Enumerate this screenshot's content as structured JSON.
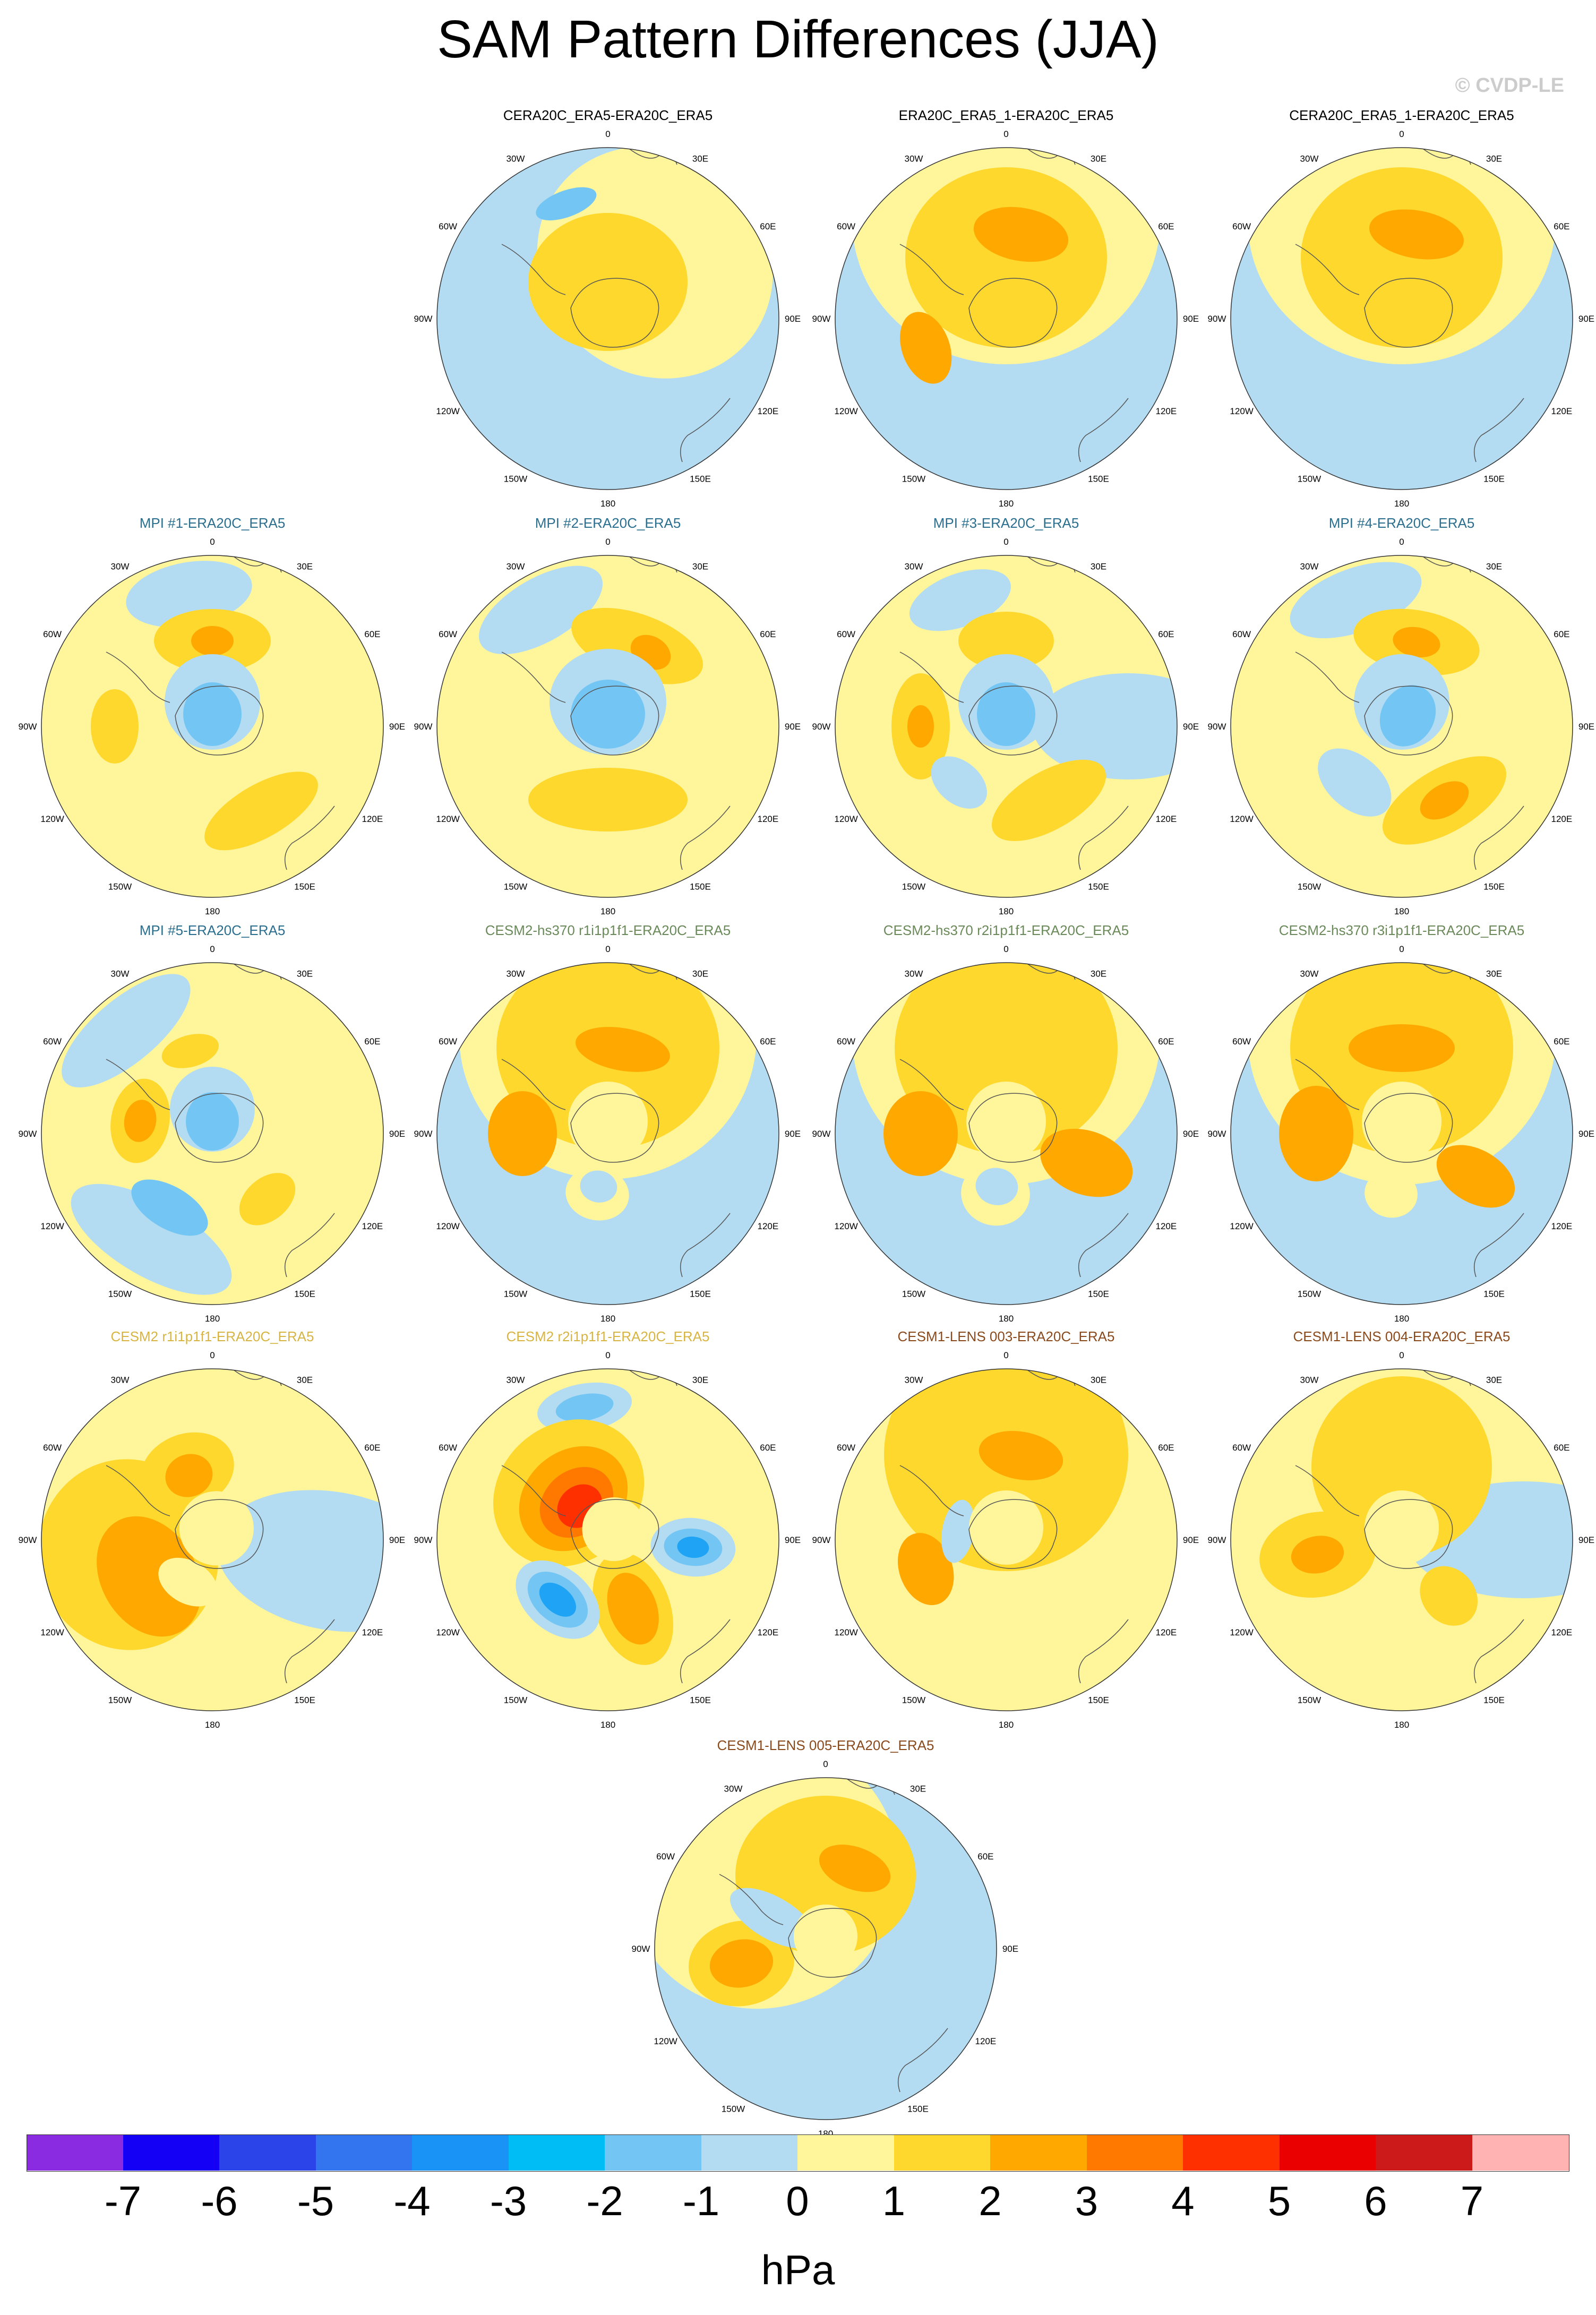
{
  "title": "SAM Pattern Differences (JJA)",
  "copyright": "© CVDP-LE",
  "units": "hPa",
  "colors": {
    "ocean_neg": "#b3dcf2",
    "pos_weak": "#fff59b",
    "pos_mid": "#ffd82e",
    "pos_strong": "#ffa800",
    "pos_stronger": "#ff7800",
    "pos_red": "#ff3000",
    "neg_mid": "#73c6f4",
    "neg_strong": "#1ea3f5",
    "title_blue": "#2a6f8f",
    "title_green": "#6b8a5a",
    "title_gold": "#d8b443",
    "title_brown": "#8a4a1c"
  },
  "colorbar": {
    "colors": [
      "#8a2be2",
      "#1400f5",
      "#2a44ea",
      "#3375ef",
      "#1a93f7",
      "#00bdf5",
      "#73c6f4",
      "#b3dcf2",
      "#fff59b",
      "#ffd82e",
      "#ffa800",
      "#ff7800",
      "#ff3000",
      "#ea0000",
      "#cc1a1a",
      "#ffb3b3"
    ],
    "labels": [
      "-7",
      "-6",
      "-5",
      "-4",
      "-3",
      "-2",
      "-1",
      "0",
      "1",
      "2",
      "3",
      "4",
      "5",
      "6",
      "7"
    ]
  },
  "lon_labels": [
    "0",
    "30E",
    "60E",
    "90E",
    "120E",
    "150E",
    "180",
    "150W",
    "120W",
    "90W",
    "60W",
    "30W"
  ],
  "panels": [
    {
      "title": "CERA20C_ERA5-ERA20C_ERA5",
      "title_color": "#000000",
      "bg": "#b3dcf2",
      "blobs": [
        {
          "lat": -60,
          "lon": 40,
          "rx": 230,
          "ry": 210,
          "color": "#fff59b"
        },
        {
          "lat": -75,
          "lon": 0,
          "rx": 150,
          "ry": 130,
          "color": "#ffd82e"
        },
        {
          "lat": -40,
          "lon": -20,
          "rx": 60,
          "ry": 25,
          "color": "#73c6f4"
        }
      ]
    },
    {
      "title": "ERA20C_ERA5_1-ERA20C_ERA5",
      "title_color": "#000000",
      "bg": "#b3dcf2",
      "blobs": [
        {
          "lat": -50,
          "lon": 0,
          "rx": 290,
          "ry": 270,
          "color": "#fff59b"
        },
        {
          "lat": -65,
          "lon": 0,
          "rx": 190,
          "ry": 170,
          "color": "#ffd82e"
        },
        {
          "lat": -55,
          "lon": 10,
          "rx": 90,
          "ry": 50,
          "color": "#ffa800"
        },
        {
          "lat": -55,
          "lon": -110,
          "rx": 70,
          "ry": 45,
          "color": "#ffa800"
        }
      ]
    },
    {
      "title": "CERA20C_ERA5_1-ERA20C_ERA5",
      "title_color": "#000000",
      "bg": "#b3dcf2",
      "blobs": [
        {
          "lat": -50,
          "lon": 0,
          "rx": 290,
          "ry": 270,
          "color": "#fff59b"
        },
        {
          "lat": -65,
          "lon": 0,
          "rx": 190,
          "ry": 170,
          "color": "#ffd82e"
        },
        {
          "lat": -55,
          "lon": 10,
          "rx": 90,
          "ry": 45,
          "color": "#ffa800"
        }
      ]
    },
    {
      "title": "MPI #1-ERA20C_ERA5",
      "title_color": "#2a6f8f",
      "bg": "#fff59b",
      "blobs": [
        {
          "lat": -35,
          "lon": -10,
          "rx": 120,
          "ry": 60,
          "color": "#b3dcf2"
        },
        {
          "lat": -55,
          "lon": 0,
          "rx": 110,
          "ry": 60,
          "color": "#ffd82e"
        },
        {
          "lat": -55,
          "lon": 0,
          "rx": 40,
          "ry": 28,
          "color": "#ffa800"
        },
        {
          "lat": -50,
          "lon": -90,
          "rx": 70,
          "ry": 45,
          "color": "#ffd82e"
        },
        {
          "lat": -50,
          "lon": 150,
          "rx": 120,
          "ry": 50,
          "color": "#ffd82e"
        },
        {
          "lat": -80,
          "lon": 0,
          "rx": 90,
          "ry": 90,
          "color": "#b3dcf2"
        },
        {
          "lat": -85,
          "lon": 0,
          "rx": 55,
          "ry": 60,
          "color": "#73c6f4"
        }
      ]
    },
    {
      "title": "MPI #2-ERA20C_ERA5",
      "title_color": "#2a6f8f",
      "bg": "#fff59b",
      "blobs": [
        {
          "lat": -35,
          "lon": -30,
          "rx": 130,
          "ry": 60,
          "color": "#b3dcf2"
        },
        {
          "lat": -55,
          "lon": 20,
          "rx": 130,
          "ry": 60,
          "color": "#ffd82e"
        },
        {
          "lat": -55,
          "lon": 30,
          "rx": 40,
          "ry": 30,
          "color": "#ffa800"
        },
        {
          "lat": -60,
          "lon": 180,
          "rx": 150,
          "ry": 60,
          "color": "#ffd82e"
        },
        {
          "lat": -80,
          "lon": 0,
          "rx": 110,
          "ry": 100,
          "color": "#b3dcf2"
        },
        {
          "lat": -85,
          "lon": 0,
          "rx": 70,
          "ry": 65,
          "color": "#73c6f4"
        }
      ]
    },
    {
      "title": "MPI #3-ERA20C_ERA5",
      "title_color": "#2a6f8f",
      "bg": "#fff59b",
      "blobs": [
        {
          "lat": -40,
          "lon": 90,
          "rx": 100,
          "ry": 180,
          "color": "#b3dcf2"
        },
        {
          "lat": -35,
          "lon": -20,
          "rx": 100,
          "ry": 50,
          "color": "#b3dcf2"
        },
        {
          "lat": -55,
          "lon": 0,
          "rx": 90,
          "ry": 55,
          "color": "#ffd82e"
        },
        {
          "lat": -55,
          "lon": -90,
          "rx": 100,
          "ry": 55,
          "color": "#ffd82e"
        },
        {
          "lat": -55,
          "lon": -90,
          "rx": 40,
          "ry": 25,
          "color": "#ffa800"
        },
        {
          "lat": -55,
          "lon": 150,
          "rx": 120,
          "ry": 55,
          "color": "#ffd82e"
        },
        {
          "lat": -60,
          "lon": -140,
          "rx": 60,
          "ry": 40,
          "color": "#b3dcf2"
        },
        {
          "lat": -80,
          "lon": 0,
          "rx": 90,
          "ry": 90,
          "color": "#b3dcf2"
        },
        {
          "lat": -85,
          "lon": 0,
          "rx": 55,
          "ry": 60,
          "color": "#73c6f4"
        }
      ]
    },
    {
      "title": "MPI #4-ERA20C_ERA5",
      "title_color": "#2a6f8f",
      "bg": "#fff59b",
      "blobs": [
        {
          "lat": -35,
          "lon": -20,
          "rx": 130,
          "ry": 60,
          "color": "#b3dcf2"
        },
        {
          "lat": -55,
          "lon": 10,
          "rx": 120,
          "ry": 60,
          "color": "#ffd82e"
        },
        {
          "lat": -55,
          "lon": 10,
          "rx": 45,
          "ry": 28,
          "color": "#ffa800"
        },
        {
          "lat": -55,
          "lon": 150,
          "rx": 130,
          "ry": 60,
          "color": "#ffd82e"
        },
        {
          "lat": -55,
          "lon": 150,
          "rx": 50,
          "ry": 30,
          "color": "#ffa800"
        },
        {
          "lat": -60,
          "lon": -140,
          "rx": 80,
          "ry": 50,
          "color": "#b3dcf2"
        },
        {
          "lat": -80,
          "lon": 0,
          "rx": 90,
          "ry": 90,
          "color": "#b3dcf2"
        },
        {
          "lat": -85,
          "lon": 30,
          "rx": 50,
          "ry": 60,
          "color": "#73c6f4"
        }
      ]
    },
    {
      "title": "MPI #5-ERA20C_ERA5",
      "title_color": "#2a6f8f",
      "bg": "#fff59b",
      "blobs": [
        {
          "lat": -35,
          "lon": -40,
          "rx": 150,
          "ry": 60,
          "color": "#b3dcf2"
        },
        {
          "lat": -40,
          "lon": -150,
          "rx": 170,
          "ry": 70,
          "color": "#b3dcf2"
        },
        {
          "lat": -55,
          "lon": -150,
          "rx": 80,
          "ry": 40,
          "color": "#73c6f4"
        },
        {
          "lat": -55,
          "lon": -15,
          "rx": 55,
          "ry": 30,
          "color": "#ffd82e"
        },
        {
          "lat": -60,
          "lon": -80,
          "rx": 80,
          "ry": 55,
          "color": "#ffd82e"
        },
        {
          "lat": -60,
          "lon": -80,
          "rx": 40,
          "ry": 30,
          "color": "#ffa800"
        },
        {
          "lat": -55,
          "lon": 140,
          "rx": 60,
          "ry": 40,
          "color": "#ffd82e"
        },
        {
          "lat": -80,
          "lon": 0,
          "rx": 80,
          "ry": 80,
          "color": "#b3dcf2"
        },
        {
          "lat": -85,
          "lon": 0,
          "rx": 50,
          "ry": 55,
          "color": "#73c6f4"
        }
      ]
    },
    {
      "title": "CESM2-hs370 r1i1p1f1-ERA20C_ERA5",
      "title_color": "#6b8a5a",
      "bg": "#b3dcf2",
      "blobs": [
        {
          "lat": -50,
          "lon": 0,
          "rx": 280,
          "ry": 270,
          "color": "#fff59b"
        },
        {
          "lat": -55,
          "lon": 0,
          "rx": 210,
          "ry": 190,
          "color": "#ffd82e"
        },
        {
          "lat": -55,
          "lon": -90,
          "rx": 80,
          "ry": 65,
          "color": "#ffa800"
        },
        {
          "lat": -55,
          "lon": 10,
          "rx": 90,
          "ry": 40,
          "color": "#ffa800"
        },
        {
          "lat": -65,
          "lon": -170,
          "rx": 60,
          "ry": 50,
          "color": "#fff59b"
        },
        {
          "lat": -68,
          "lon": -170,
          "rx": 35,
          "ry": 30,
          "color": "#b3dcf2"
        },
        {
          "lat": -85,
          "lon": 0,
          "rx": 75,
          "ry": 75,
          "color": "#fff59b"
        }
      ]
    },
    {
      "title": "CESM2-hs370 r2i1p1f1-ERA20C_ERA5",
      "title_color": "#6b8a5a",
      "bg": "#b3dcf2",
      "blobs": [
        {
          "lat": -50,
          "lon": 0,
          "rx": 290,
          "ry": 280,
          "color": "#fff59b"
        },
        {
          "lat": -55,
          "lon": 0,
          "rx": 210,
          "ry": 200,
          "color": "#ffd82e"
        },
        {
          "lat": -55,
          "lon": -90,
          "rx": 80,
          "ry": 70,
          "color": "#ffa800"
        },
        {
          "lat": -55,
          "lon": 110,
          "rx": 60,
          "ry": 90,
          "color": "#ffa800"
        },
        {
          "lat": -65,
          "lon": -170,
          "rx": 65,
          "ry": 60,
          "color": "#fff59b"
        },
        {
          "lat": -68,
          "lon": -170,
          "rx": 40,
          "ry": 35,
          "color": "#b3dcf2"
        },
        {
          "lat": -85,
          "lon": 0,
          "rx": 75,
          "ry": 75,
          "color": "#fff59b"
        }
      ]
    },
    {
      "title": "CESM2-hs370 r3i1p1f1-ERA20C_ERA5",
      "title_color": "#6b8a5a",
      "bg": "#b3dcf2",
      "blobs": [
        {
          "lat": -50,
          "lon": 0,
          "rx": 290,
          "ry": 280,
          "color": "#fff59b"
        },
        {
          "lat": -55,
          "lon": 0,
          "rx": 210,
          "ry": 200,
          "color": "#ffd82e"
        },
        {
          "lat": -55,
          "lon": -90,
          "rx": 90,
          "ry": 70,
          "color": "#ffa800"
        },
        {
          "lat": -55,
          "lon": 0,
          "rx": 100,
          "ry": 45,
          "color": "#ffa800"
        },
        {
          "lat": -55,
          "lon": 120,
          "rx": 50,
          "ry": 80,
          "color": "#ffa800"
        },
        {
          "lat": -65,
          "lon": -170,
          "rx": 50,
          "ry": 45,
          "color": "#fff59b"
        },
        {
          "lat": -85,
          "lon": 0,
          "rx": 75,
          "ry": 75,
          "color": "#fff59b"
        }
      ]
    },
    {
      "title": "CESM2 r1i1p1f1-ERA20C_ERA5",
      "title_color": "#d8b443",
      "bg": "#fff59b",
      "blobs": [
        {
          "lat": -40,
          "lon": 100,
          "rx": 130,
          "ry": 220,
          "color": "#b3dcf2"
        },
        {
          "lat": -55,
          "lon": -100,
          "rx": 180,
          "ry": 170,
          "color": "#ffd82e"
        },
        {
          "lat": -60,
          "lon": -120,
          "rx": 120,
          "ry": 90,
          "color": "#ffa800"
        },
        {
          "lat": -60,
          "lon": -20,
          "rx": 90,
          "ry": 70,
          "color": "#ffd82e"
        },
        {
          "lat": -62,
          "lon": -20,
          "rx": 45,
          "ry": 40,
          "color": "#ffa800"
        },
        {
          "lat": -70,
          "lon": -150,
          "rx": 60,
          "ry": 40,
          "color": "#fff59b"
        },
        {
          "lat": -85,
          "lon": 20,
          "rx": 70,
          "ry": 70,
          "color": "#fff59b"
        }
      ]
    },
    {
      "title": "CESM2 r2i1p1f1-ERA20C_ERA5",
      "title_color": "#d8b443",
      "bg": "#fff59b",
      "blobs": [
        {
          "lat": -35,
          "lon": -10,
          "rx": 90,
          "ry": 45,
          "color": "#b3dcf2"
        },
        {
          "lat": -35,
          "lon": -10,
          "rx": 55,
          "ry": 25,
          "color": "#73c6f4"
        },
        {
          "lat": -65,
          "lon": -40,
          "rx": 150,
          "ry": 130,
          "color": "#ffd82e"
        },
        {
          "lat": -68,
          "lon": -40,
          "rx": 110,
          "ry": 90,
          "color": "#ffa800"
        },
        {
          "lat": -70,
          "lon": -40,
          "rx": 75,
          "ry": 60,
          "color": "#ff7800"
        },
        {
          "lat": -72,
          "lon": -40,
          "rx": 45,
          "ry": 38,
          "color": "#ff3000"
        },
        {
          "lat": -60,
          "lon": 160,
          "rx": 70,
          "ry": 110,
          "color": "#ffd82e"
        },
        {
          "lat": -60,
          "lon": 160,
          "rx": 45,
          "ry": 70,
          "color": "#ffa800"
        },
        {
          "lat": -55,
          "lon": 95,
          "rx": 55,
          "ry": 80,
          "color": "#b3dcf2"
        },
        {
          "lat": -55,
          "lon": 95,
          "rx": 35,
          "ry": 55,
          "color": "#73c6f4"
        },
        {
          "lat": -55,
          "lon": 95,
          "rx": 20,
          "ry": 30,
          "color": "#1ea3f5"
        },
        {
          "lat": -58,
          "lon": -140,
          "rx": 90,
          "ry": 60,
          "color": "#b3dcf2"
        },
        {
          "lat": -58,
          "lon": -140,
          "rx": 65,
          "ry": 42,
          "color": "#73c6f4"
        },
        {
          "lat": -58,
          "lon": -140,
          "rx": 40,
          "ry": 25,
          "color": "#1ea3f5"
        },
        {
          "lat": -85,
          "lon": 30,
          "rx": 60,
          "ry": 60,
          "color": "#fff59b"
        }
      ]
    },
    {
      "title": "CESM1-LENS 003-ERA20C_ERA5",
      "title_color": "#8a4a1c",
      "bg": "#fff59b",
      "blobs": [
        {
          "lat": -55,
          "lon": 0,
          "rx": 230,
          "ry": 220,
          "color": "#ffd82e"
        },
        {
          "lat": -55,
          "lon": 10,
          "rx": 80,
          "ry": 45,
          "color": "#ffa800"
        },
        {
          "lat": -55,
          "lon": -110,
          "rx": 70,
          "ry": 50,
          "color": "#ffa800"
        },
        {
          "lat": -70,
          "lon": -80,
          "rx": 60,
          "ry": 30,
          "color": "#b3dcf2"
        },
        {
          "lat": -85,
          "lon": 0,
          "rx": 70,
          "ry": 70,
          "color": "#fff59b"
        }
      ]
    },
    {
      "title": "CESM1-LENS 004-ERA20C_ERA5",
      "title_color": "#8a4a1c",
      "bg": "#fff59b",
      "blobs": [
        {
          "lat": -40,
          "lon": 90,
          "rx": 110,
          "ry": 220,
          "color": "#b3dcf2"
        },
        {
          "lat": -60,
          "lon": 0,
          "rx": 170,
          "ry": 170,
          "color": "#ffd82e"
        },
        {
          "lat": -55,
          "lon": -100,
          "rx": 80,
          "ry": 110,
          "color": "#ffd82e"
        },
        {
          "lat": -55,
          "lon": -100,
          "rx": 35,
          "ry": 50,
          "color": "#ffa800"
        },
        {
          "lat": -60,
          "lon": 140,
          "rx": 50,
          "ry": 60,
          "color": "#ffd82e"
        },
        {
          "lat": -85,
          "lon": 0,
          "rx": 70,
          "ry": 70,
          "color": "#fff59b"
        }
      ]
    },
    {
      "title": "CESM1-LENS 005-ERA20C_ERA5",
      "title_color": "#8a4a1c",
      "bg": "#b3dcf2",
      "blobs": [
        {
          "lat": -50,
          "lon": -40,
          "rx": 260,
          "ry": 250,
          "color": "#fff59b"
        },
        {
          "lat": -60,
          "lon": 0,
          "rx": 170,
          "ry": 150,
          "color": "#ffd82e"
        },
        {
          "lat": -55,
          "lon": 20,
          "rx": 70,
          "ry": 40,
          "color": "#ffa800"
        },
        {
          "lat": -55,
          "lon": -100,
          "rx": 80,
          "ry": 100,
          "color": "#ffd82e"
        },
        {
          "lat": -55,
          "lon": -100,
          "rx": 45,
          "ry": 60,
          "color": "#ffa800"
        },
        {
          "lat": -65,
          "lon": -60,
          "rx": 40,
          "ry": 90,
          "color": "#b3dcf2"
        },
        {
          "lat": -85,
          "lon": 0,
          "rx": 60,
          "ry": 60,
          "color": "#fff59b"
        }
      ]
    }
  ]
}
